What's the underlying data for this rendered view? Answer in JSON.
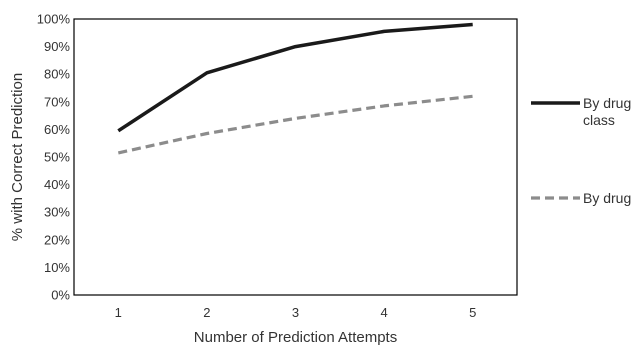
{
  "chart_data": {
    "type": "line",
    "xlabel": "Number of Prediction Attempts",
    "ylabel": "% with Correct Prediction",
    "categories": [
      "1",
      "2",
      "3",
      "4",
      "5"
    ],
    "ylim": [
      0,
      100
    ],
    "y_ticks": [
      "0%",
      "10%",
      "20%",
      "30%",
      "40%",
      "50%",
      "60%",
      "70%",
      "80%",
      "90%",
      "100%"
    ],
    "grid": false,
    "legend_position": "right",
    "series": [
      {
        "name": "By drug class",
        "name_lines": [
          "By drug",
          "class"
        ],
        "values": [
          59.5,
          80.5,
          90,
          95.5,
          98
        ],
        "color": "#1a1a1a",
        "dash": "solid"
      },
      {
        "name": "By drug",
        "name_lines": [
          "By drug"
        ],
        "values": [
          51.5,
          58.5,
          64,
          68.5,
          72
        ],
        "color": "#8c8c8c",
        "dash": "dashed"
      }
    ]
  }
}
